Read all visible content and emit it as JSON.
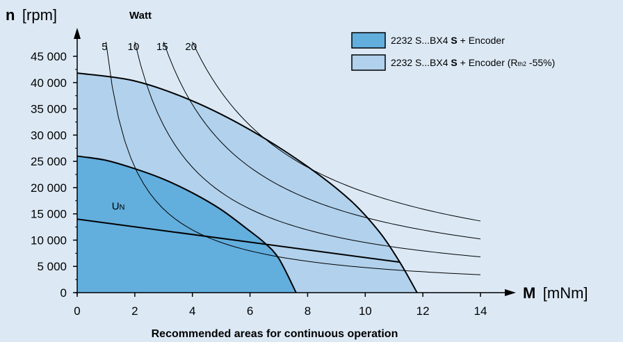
{
  "chart_data": {
    "type": "area",
    "xlabel_symbol": "M",
    "xlabel_unit": "[mNm]",
    "ylabel_symbol": "n",
    "ylabel_unit": "[rpm]",
    "power_label": "Watt",
    "footer": "Recommended areas for continuous operation",
    "xlim": [
      0,
      14
    ],
    "ylim": [
      0,
      45000
    ],
    "x_ticks": [
      0,
      2,
      4,
      6,
      8,
      10,
      12,
      14
    ],
    "x_tick_labels": [
      "0",
      "2",
      "4",
      "6",
      "8",
      "10",
      "12",
      "14"
    ],
    "y_ticks": [
      0,
      5000,
      10000,
      15000,
      20000,
      25000,
      30000,
      35000,
      40000,
      45000
    ],
    "y_tick_labels": [
      "0",
      "5 000",
      "10 000",
      "15 000",
      "20 000",
      "25 000",
      "30 000",
      "35 000",
      "40 000",
      "45 000"
    ],
    "grid": false,
    "legend_position": "top-right",
    "legend_text": {
      "s1_pre": "2232 S...BX4 ",
      "s1_bold": "S",
      "s1_post": " + Encoder",
      "s2_pre": "2232 S...BX4 ",
      "s2_bold": "S",
      "s2_post": " + Encoder (R",
      "s2_sub": "th2",
      "s2_end": " -55%)"
    },
    "series": [
      {
        "name": "2232 S...BX4 S + Encoder (Rth2 -55%)",
        "color": "#b1d1ec",
        "boundary": [
          [
            0,
            41800
          ],
          [
            2,
            40300
          ],
          [
            4,
            36500
          ],
          [
            6,
            31000
          ],
          [
            8,
            24000
          ],
          [
            9.5,
            17500
          ],
          [
            10.5,
            11500
          ],
          [
            11.2,
            5800
          ],
          [
            11.8,
            0
          ]
        ]
      },
      {
        "name": "2232 S...BX4 S + Encoder",
        "color": "#62aedd",
        "boundary": [
          [
            0,
            26000
          ],
          [
            1,
            25200
          ],
          [
            2,
            23600
          ],
          [
            3,
            21600
          ],
          [
            4,
            19000
          ],
          [
            5,
            15800
          ],
          [
            6,
            11700
          ],
          [
            6.5,
            9500
          ],
          [
            7,
            6500
          ],
          [
            7.6,
            0
          ]
        ]
      }
    ],
    "voltage_line": {
      "label": "U",
      "label_sub": "N",
      "points": [
        [
          0,
          14000
        ],
        [
          11.2,
          5800
        ]
      ],
      "label_at": [
        1.2,
        15800
      ]
    },
    "power_curves": [
      {
        "label": "5",
        "watts": 5,
        "m_start": 1.0
      },
      {
        "label": "10",
        "watts": 10,
        "m_start": 2.0
      },
      {
        "label": "15",
        "watts": 15,
        "m_start": 3.0
      },
      {
        "label": "20",
        "watts": 20,
        "m_start": 4.0
      }
    ],
    "power_curve_m_end": 14
  }
}
